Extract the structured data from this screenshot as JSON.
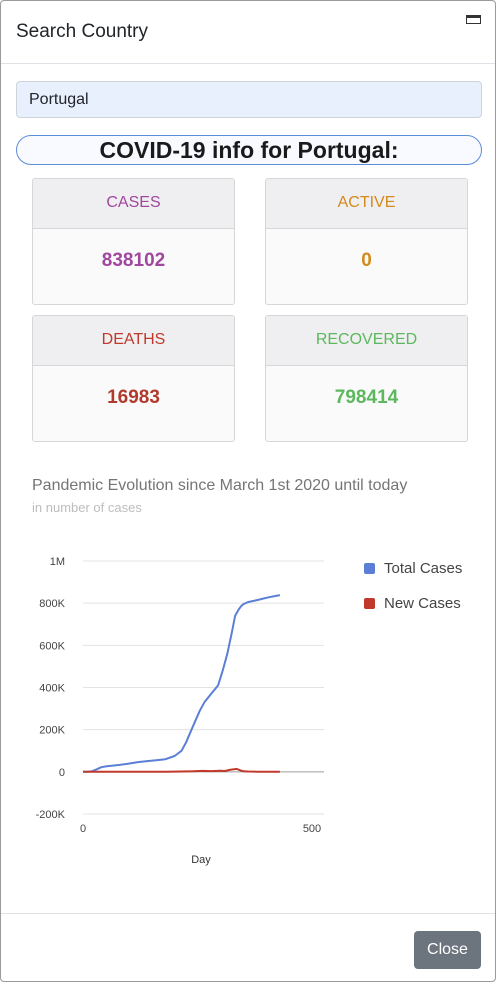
{
  "modal": {
    "title": "Search Country",
    "close_label": "Close"
  },
  "search": {
    "value": "Portugal"
  },
  "info": {
    "title": "COVID-19 info for Portugal:"
  },
  "stats": {
    "cases": {
      "label": "CASES",
      "value": "838102",
      "color": "#a0479f"
    },
    "active": {
      "label": "ACTIVE",
      "value": "0",
      "color": "#d48a1c"
    },
    "deaths": {
      "label": "DEATHS",
      "value": "16983",
      "color": "#c0392b"
    },
    "recovered": {
      "label": "RECOVERED",
      "value": "798414",
      "color": "#5cb85c"
    }
  },
  "chart": {
    "title": "Pandemic Evolution since March 1st 2020 until today",
    "subtitle": "in number of cases"
  },
  "chart_data": {
    "type": "line",
    "xlabel": "Day",
    "ylabel": "",
    "xlim": [
      0,
      500
    ],
    "ylim": [
      -200000,
      1000000
    ],
    "x_ticks": [
      0,
      500
    ],
    "x_tick_labels": [
      "0",
      "500"
    ],
    "y_ticks": [
      -200000,
      0,
      200000,
      400000,
      600000,
      800000,
      1000000
    ],
    "y_tick_labels": [
      "-200K",
      "0",
      "200K",
      "400K",
      "600K",
      "800K",
      "1M"
    ],
    "grid": true,
    "legend_position": "right",
    "series": [
      {
        "name": "Total Cases",
        "color": "#5b7fd6",
        "x": [
          0,
          10,
          20,
          30,
          40,
          50,
          60,
          80,
          100,
          120,
          140,
          160,
          180,
          200,
          215,
          225,
          235,
          245,
          255,
          265,
          280,
          295,
          305,
          315,
          325,
          332,
          340,
          345,
          350,
          360,
          375,
          390,
          405,
          420,
          430
        ],
        "y": [
          0,
          0,
          3000,
          12000,
          22000,
          26000,
          28000,
          33000,
          39000,
          46000,
          51000,
          55000,
          60000,
          75000,
          100000,
          140000,
          190000,
          240000,
          290000,
          330000,
          370000,
          410000,
          480000,
          560000,
          660000,
          740000,
          770000,
          785000,
          795000,
          805000,
          812000,
          820000,
          828000,
          834000,
          838102
        ]
      },
      {
        "name": "New Cases",
        "color": "#c0392b",
        "x": [
          0,
          30,
          60,
          100,
          140,
          180,
          200,
          240,
          260,
          280,
          300,
          310,
          320,
          330,
          335,
          340,
          345,
          350,
          360,
          380,
          400,
          430
        ],
        "y": [
          0,
          400,
          300,
          400,
          200,
          700,
          1000,
          2500,
          4500,
          3500,
          5000,
          4000,
          9000,
          12000,
          14000,
          10000,
          6000,
          3000,
          1500,
          800,
          500,
          300
        ]
      }
    ]
  }
}
